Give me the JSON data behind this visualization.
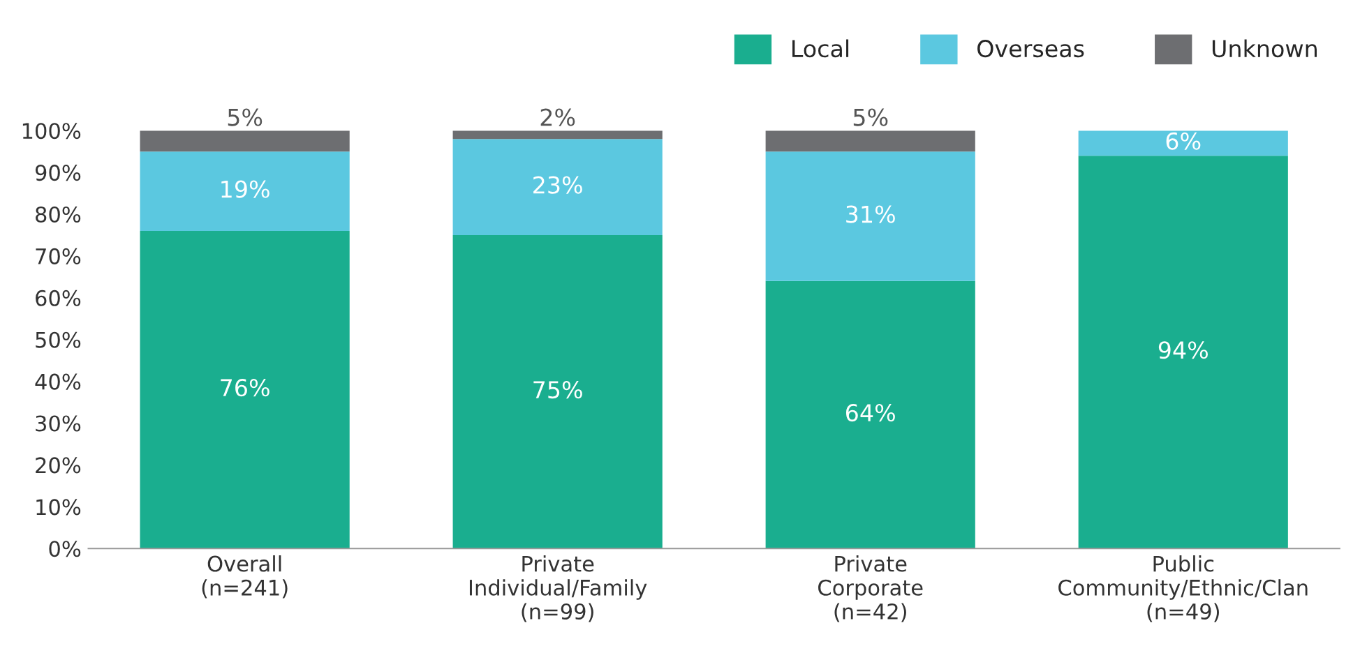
{
  "chart_data": {
    "type": "bar",
    "stacked": true,
    "categories": [
      "Overall\n(n=241)",
      "Private\nIndividual/Family\n(n=99)",
      "Private\nCorporate\n(n=42)",
      "Public\nCommunity/Ethnic/Clan\n(n=49)"
    ],
    "series": [
      {
        "name": "Local",
        "color": "#1aae8f",
        "values": [
          76,
          75,
          64,
          94
        ],
        "value_labels": [
          "76%",
          "75%",
          "64%",
          "94%"
        ]
      },
      {
        "name": "Overseas",
        "color": "#5bc8e0",
        "values": [
          19,
          23,
          31,
          6
        ],
        "value_labels": [
          "19%",
          "23%",
          "31%",
          "6%"
        ]
      },
      {
        "name": "Unknown",
        "color": "#6d6e71",
        "values": [
          5,
          2,
          5,
          0
        ],
        "value_labels": [
          "5%",
          "2%",
          "5%",
          null
        ]
      }
    ],
    "ylim": [
      0,
      100
    ],
    "yticks": [
      {
        "value": 0,
        "label": "0%"
      },
      {
        "value": 10,
        "label": "10%"
      },
      {
        "value": 20,
        "label": "20%"
      },
      {
        "value": 30,
        "label": "30%"
      },
      {
        "value": 40,
        "label": "40%"
      },
      {
        "value": 50,
        "label": "50%"
      },
      {
        "value": 60,
        "label": "60%"
      },
      {
        "value": 70,
        "label": "70%"
      },
      {
        "value": 80,
        "label": "80%"
      },
      {
        "value": 90,
        "label": "90%"
      },
      {
        "value": 100,
        "label": "100%"
      }
    ],
    "grid": false,
    "legend": "top right"
  }
}
